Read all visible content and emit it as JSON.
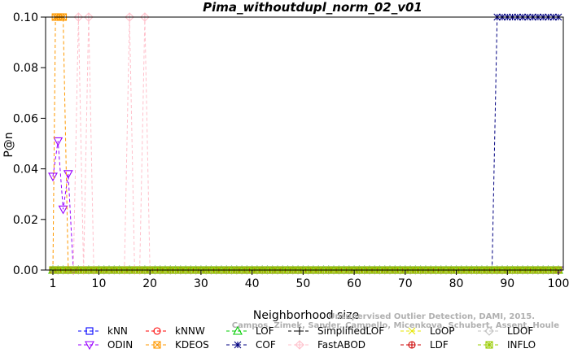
{
  "chart_data": {
    "type": "line",
    "title": "Pima_withoutdupl_norm_02_v01",
    "xlabel": "Neighborhood size",
    "ylabel": "P@n",
    "xlim": [
      1,
      100
    ],
    "ylim": [
      0,
      0.1
    ],
    "xticks": [
      1,
      10,
      20,
      30,
      40,
      50,
      60,
      70,
      80,
      90,
      100
    ],
    "yticks": [
      "0.00",
      "0.02",
      "0.04",
      "0.06",
      "0.08",
      "0.10"
    ],
    "grid": false,
    "legend_position": "bottom",
    "watermark": [
      "Unsupervised Outlier Detection, DAMI, 2015.",
      "Campos, Zimek, Sander, Campello, Micenkova, Schubert, Assent, Houle"
    ],
    "series": [
      {
        "name": "kNN",
        "color": "#0000ff",
        "marker": "square",
        "points": [
          [
            1,
            0
          ],
          [
            100,
            0
          ]
        ]
      },
      {
        "name": "kNNW",
        "color": "#ff0000",
        "marker": "circle",
        "points": [
          [
            1,
            0
          ],
          [
            100,
            0
          ]
        ]
      },
      {
        "name": "LOF",
        "color": "#00cc00",
        "marker": "triangle-up",
        "points": [
          [
            1,
            0
          ],
          [
            100,
            0
          ]
        ]
      },
      {
        "name": "SimplifiedLOF",
        "color": "#000000",
        "marker": "plus",
        "points": [
          [
            1,
            0
          ],
          [
            100,
            0
          ]
        ]
      },
      {
        "name": "LoOP",
        "color": "#e6e600",
        "marker": "x",
        "points": [
          [
            1,
            0
          ],
          [
            100,
            0
          ]
        ]
      },
      {
        "name": "LDOF",
        "color": "#c0c0c0",
        "marker": "diamond",
        "points": [
          [
            1,
            0
          ],
          [
            100,
            0
          ]
        ]
      },
      {
        "name": "ODIN",
        "color": "#9900ff",
        "marker": "triangle-down",
        "points": [
          [
            1,
            0.037
          ],
          [
            2,
            0.051
          ],
          [
            3,
            0.024
          ],
          [
            4,
            0.038
          ],
          [
            5,
            0
          ],
          [
            100,
            0
          ]
        ]
      },
      {
        "name": "KDEOS",
        "color": "#ff9900",
        "marker": "square-x",
        "points": [
          [
            1,
            0
          ],
          [
            1.5,
            0.1
          ],
          [
            2,
            0.1
          ],
          [
            2.5,
            0.1
          ],
          [
            3,
            0.1
          ],
          [
            4,
            0
          ],
          [
            100,
            0
          ]
        ]
      },
      {
        "name": "COF",
        "color": "#000080",
        "marker": "star",
        "points": [
          [
            1,
            0
          ],
          [
            87,
            0
          ],
          [
            88,
            0.1
          ],
          [
            89,
            0.1
          ],
          [
            90,
            0.1
          ],
          [
            91,
            0.1
          ],
          [
            92,
            0.1
          ],
          [
            93,
            0.1
          ],
          [
            94,
            0.1
          ],
          [
            95,
            0.1
          ],
          [
            96,
            0.1
          ],
          [
            97,
            0.1
          ],
          [
            98,
            0.1
          ],
          [
            99,
            0.1
          ],
          [
            100,
            0.1
          ]
        ]
      },
      {
        "name": "FastABOD",
        "color": "#ffc0cb",
        "marker": "diamond-plus",
        "points": [
          [
            5,
            0
          ],
          [
            6,
            0.1
          ],
          [
            7,
            0
          ],
          [
            8,
            0.1
          ],
          [
            9,
            0
          ],
          [
            15,
            0
          ],
          [
            16,
            0.1
          ],
          [
            17,
            0
          ],
          [
            18,
            0
          ],
          [
            19,
            0.1
          ],
          [
            20,
            0
          ]
        ]
      },
      {
        "name": "LDF",
        "color": "#cc0000",
        "marker": "circle-plus",
        "points": [
          [
            1,
            0
          ],
          [
            100,
            0
          ]
        ]
      },
      {
        "name": "INFLO",
        "color": "#99cc00",
        "marker": "square-star",
        "points": [
          [
            1,
            0
          ],
          [
            100,
            0
          ]
        ]
      }
    ]
  }
}
